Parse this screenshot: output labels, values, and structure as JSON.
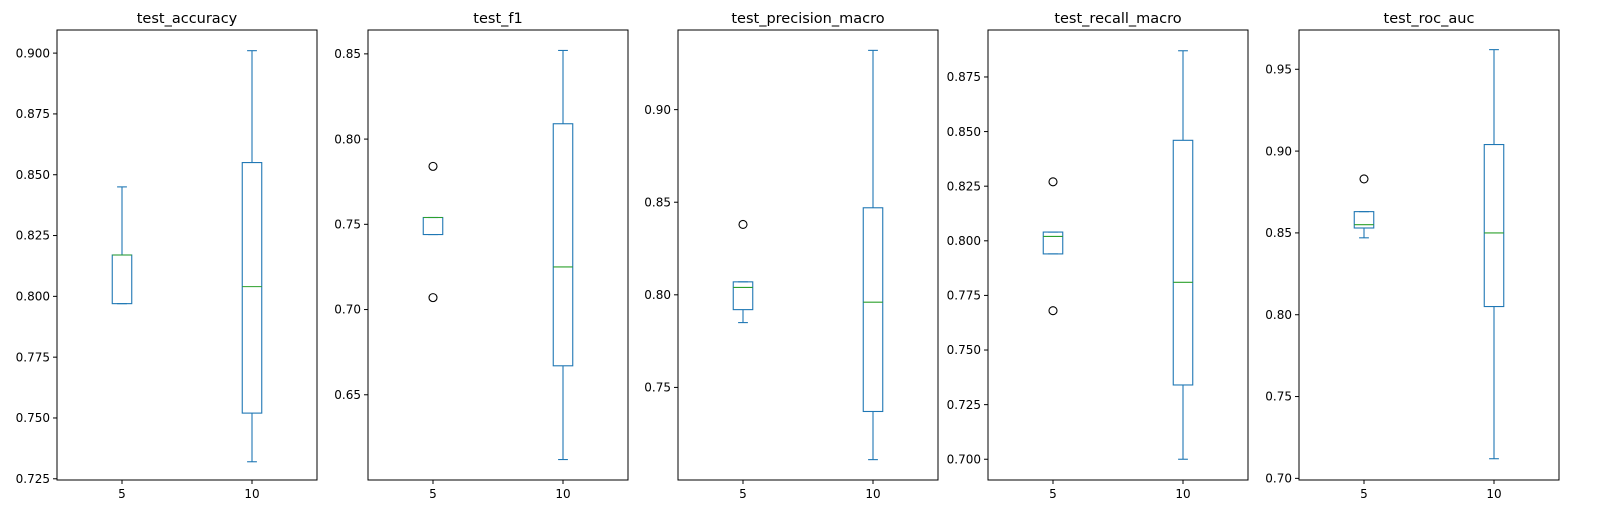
{
  "chart_data": [
    {
      "type": "box",
      "title": "test_accuracy",
      "categories": [
        "5",
        "10"
      ],
      "ylim": [
        0.7245,
        0.9095
      ],
      "yticks": [
        0.725,
        0.75,
        0.775,
        0.8,
        0.825,
        0.85,
        0.875,
        0.9
      ],
      "ytick_labels": [
        "0.725",
        "0.750",
        "0.775",
        "0.800",
        "0.825",
        "0.850",
        "0.875",
        "0.900"
      ],
      "boxes": [
        {
          "whislo": 0.797,
          "q1": 0.797,
          "med": 0.817,
          "q3": 0.817,
          "whishi": 0.845,
          "fliers": []
        },
        {
          "whislo": 0.732,
          "q1": 0.752,
          "med": 0.804,
          "q3": 0.855,
          "whishi": 0.901,
          "fliers": []
        }
      ]
    },
    {
      "type": "box",
      "title": "test_f1",
      "categories": [
        "5",
        "10"
      ],
      "ylim": [
        0.6,
        0.864
      ],
      "yticks": [
        0.65,
        0.7,
        0.75,
        0.8,
        0.85
      ],
      "ytick_labels": [
        "0.65",
        "0.70",
        "0.75",
        "0.80",
        "0.85"
      ],
      "boxes": [
        {
          "whislo": 0.744,
          "q1": 0.744,
          "med": 0.754,
          "q3": 0.754,
          "whishi": 0.754,
          "fliers": [
            0.784,
            0.707
          ]
        },
        {
          "whislo": 0.612,
          "q1": 0.667,
          "med": 0.725,
          "q3": 0.809,
          "whishi": 0.852,
          "fliers": []
        }
      ]
    },
    {
      "type": "box",
      "title": "test_precision_macro",
      "categories": [
        "5",
        "10"
      ],
      "ylim": [
        0.7,
        0.943
      ],
      "yticks": [
        0.75,
        0.8,
        0.85,
        0.9
      ],
      "ytick_labels": [
        "0.75",
        "0.80",
        "0.85",
        "0.90"
      ],
      "boxes": [
        {
          "whislo": 0.785,
          "q1": 0.792,
          "med": 0.804,
          "q3": 0.807,
          "whishi": 0.807,
          "fliers": [
            0.838
          ]
        },
        {
          "whislo": 0.711,
          "q1": 0.737,
          "med": 0.796,
          "q3": 0.847,
          "whishi": 0.932,
          "fliers": []
        }
      ]
    },
    {
      "type": "box",
      "title": "test_recall_macro",
      "categories": [
        "5",
        "10"
      ],
      "ylim": [
        0.6905,
        0.8965
      ],
      "yticks": [
        0.7,
        0.725,
        0.75,
        0.775,
        0.8,
        0.825,
        0.85,
        0.875
      ],
      "ytick_labels": [
        "0.700",
        "0.725",
        "0.750",
        "0.775",
        "0.800",
        "0.825",
        "0.850",
        "0.875"
      ],
      "boxes": [
        {
          "whislo": 0.794,
          "q1": 0.794,
          "med": 0.802,
          "q3": 0.804,
          "whishi": 0.804,
          "fliers": [
            0.827,
            0.768
          ]
        },
        {
          "whislo": 0.7,
          "q1": 0.734,
          "med": 0.781,
          "q3": 0.846,
          "whishi": 0.887,
          "fliers": []
        }
      ]
    },
    {
      "type": "box",
      "title": "test_roc_auc",
      "categories": [
        "5",
        "10"
      ],
      "ylim": [
        0.699,
        0.974
      ],
      "yticks": [
        0.7,
        0.75,
        0.8,
        0.85,
        0.9,
        0.95
      ],
      "ytick_labels": [
        "0.70",
        "0.75",
        "0.80",
        "0.85",
        "0.90",
        "0.95"
      ],
      "boxes": [
        {
          "whislo": 0.847,
          "q1": 0.853,
          "med": 0.855,
          "q3": 0.863,
          "whishi": 0.863,
          "fliers": [
            0.883
          ]
        },
        {
          "whislo": 0.712,
          "q1": 0.805,
          "med": 0.85,
          "q3": 0.904,
          "whishi": 0.962,
          "fliers": []
        }
      ]
    }
  ],
  "colors": {
    "box": "#1f77b4",
    "median": "#2ca02c",
    "flier": "#000000"
  }
}
